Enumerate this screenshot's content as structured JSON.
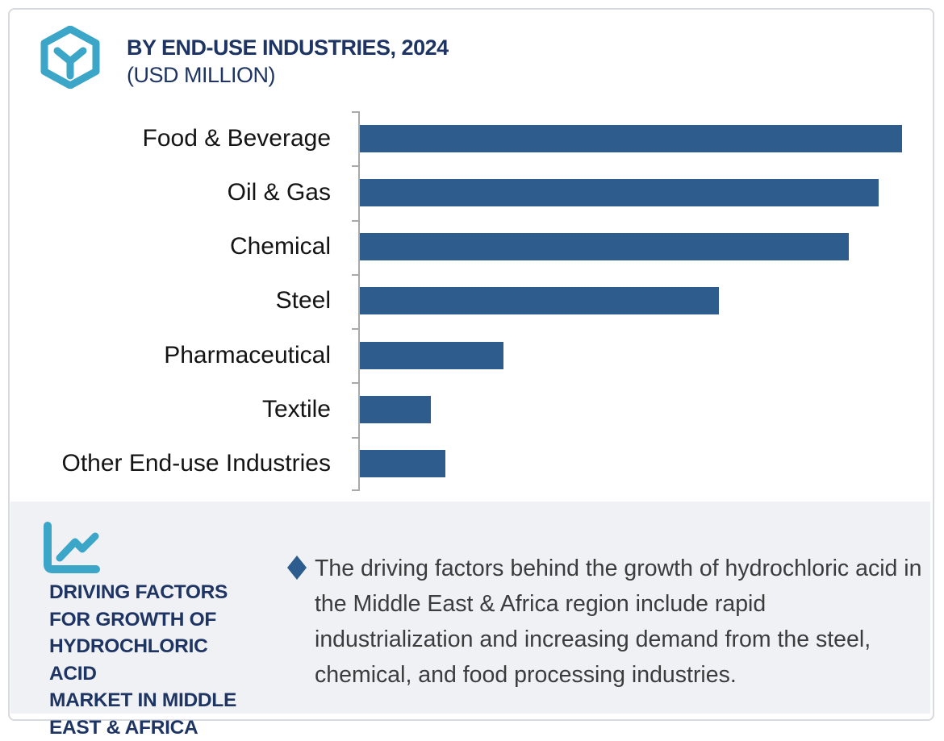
{
  "header": {
    "title": "BY END-USE INDUSTRIES, 2024",
    "subtitle": "(USD MILLION)",
    "logo_icon": "hexagon-cube-logo",
    "title_color": "#1e3462",
    "logo_color": "#3ba6c7"
  },
  "chart_data": {
    "type": "bar",
    "orientation": "horizontal",
    "title": "BY END-USE INDUSTRIES, 2024 (USD MILLION)",
    "categories": [
      "Food & Beverage",
      "Oil & Gas",
      "Chemical",
      "Steel",
      "Pharmaceutical",
      "Textile",
      "Other End-use Industries"
    ],
    "values_pct_of_max": [
      100,
      95.7,
      90.2,
      66.2,
      26.5,
      13.1,
      15.8
    ],
    "value_labels_shown": false,
    "axis_numbers_shown": false,
    "grid": false,
    "legend": false,
    "bar_color": "#2e5c8c",
    "axis_color": "#a9a9a9",
    "label_color": "#141414"
  },
  "panel": {
    "icon": "line-chart-icon",
    "icon_color": "#3ba6c7",
    "heading": "DRIVING FACTORS\nFOR GROWTH OF\nHYDROCHLORIC ACID\nMARKET IN MIDDLE\nEAST & AFRICA",
    "bullet_icon": "diamond-bullet",
    "bullet_color": "#2d5d8e",
    "bullet_text": "The driving factors behind the growth of hydrochloric acid in the Middle East & Africa region include rapid industrialization and increasing demand from the steel, chemical, and food processing industries.",
    "background_color": "#eff1f5"
  }
}
